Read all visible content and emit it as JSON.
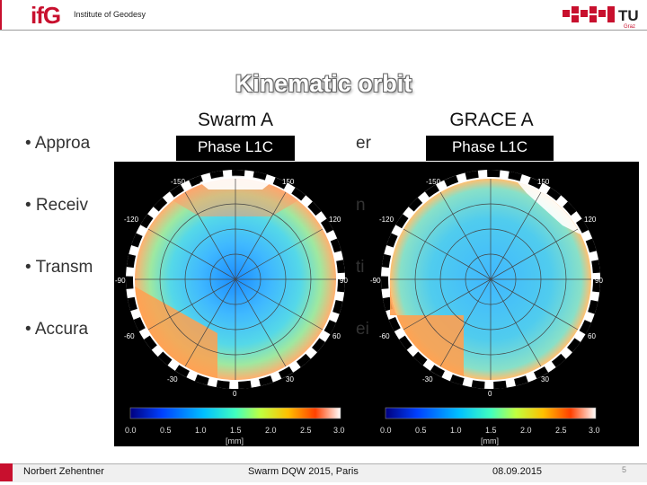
{
  "header": {
    "logo_text_red": "if",
    "logo_text_grey": "G",
    "institute": "Institute of  Geodesy",
    "tu_logo_text": "TU",
    "tu_logo_sub": "Graz"
  },
  "slide": {
    "title": "Kinematic orbit",
    "bullets": [
      "• Approa",
      "• Receiv",
      "• Transm",
      "• Accura"
    ],
    "bullet_fragments": [
      "er",
      "n",
      "ti",
      "ei"
    ]
  },
  "figure": {
    "panels": [
      {
        "title": "Swarm A",
        "label": "Phase L1C",
        "azimuth_ticks": [
          "-150",
          "-120",
          "-90",
          "-60",
          "-30",
          "0",
          "30",
          "60",
          "90",
          "120",
          "150"
        ]
      },
      {
        "title": "GRACE A",
        "label": "Phase L1C",
        "azimuth_ticks": [
          "-150",
          "-120",
          "-90",
          "-60",
          "-30",
          "0",
          "30",
          "60",
          "90",
          "120",
          "150"
        ]
      }
    ],
    "colorbar": {
      "ticks": [
        "0.0",
        "0.5",
        "1.0",
        "1.5",
        "2.0",
        "2.5",
        "3.0"
      ],
      "unit": "[mm]",
      "colors": [
        "#00007f",
        "#0040ff",
        "#00c0ff",
        "#40ffc0",
        "#c0ff40",
        "#ffc000",
        "#ff4000",
        "#ffffff"
      ]
    }
  },
  "footer": {
    "author": "Norbert Zehentner",
    "event": "Swarm DQW 2015, Paris",
    "date": "08.09.2015",
    "page": "5"
  }
}
